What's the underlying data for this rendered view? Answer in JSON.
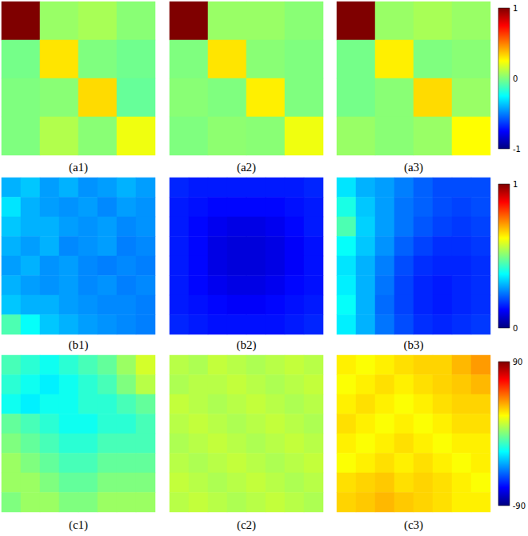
{
  "chart_data": [
    {
      "type": "heatmap",
      "title": "(a1)",
      "tick_labels": false,
      "color_range": [
        -1,
        1
      ],
      "cells": [
        [
          1.0,
          0.05,
          0.08,
          0.02
        ],
        [
          -0.02,
          0.3,
          0.0,
          -0.03
        ],
        [
          0.0,
          0.02,
          0.32,
          -0.05
        ],
        [
          0.0,
          0.1,
          0.02,
          0.22
        ]
      ]
    },
    {
      "type": "heatmap",
      "title": "(a2)",
      "tick_labels": false,
      "color_range": [
        -1,
        1
      ],
      "cells": [
        [
          1.0,
          0.05,
          0.05,
          0.02
        ],
        [
          0.0,
          0.3,
          0.02,
          0.0
        ],
        [
          0.02,
          0.0,
          0.28,
          0.0
        ],
        [
          0.0,
          0.03,
          0.02,
          0.22
        ]
      ]
    },
    {
      "type": "heatmap",
      "title": "(a3)",
      "tick_labels": false,
      "color_range": [
        -1,
        1
      ],
      "color_ticks": [
        -1,
        0,
        1
      ],
      "cells": [
        [
          1.0,
          0.05,
          0.08,
          0.05
        ],
        [
          -0.02,
          0.28,
          0.0,
          0.02
        ],
        [
          -0.02,
          0.02,
          0.32,
          0.05
        ],
        [
          0.05,
          0.02,
          0.05,
          0.25
        ]
      ]
    },
    {
      "type": "heatmap",
      "title": "(b1)",
      "tick_labels": false,
      "color_range": [
        0,
        1
      ],
      "cells": [
        [
          0.3,
          0.32,
          0.28,
          0.3,
          0.27,
          0.28,
          0.3,
          0.28
        ],
        [
          0.35,
          0.3,
          0.28,
          0.27,
          0.28,
          0.26,
          0.28,
          0.27
        ],
        [
          0.32,
          0.3,
          0.3,
          0.28,
          0.27,
          0.28,
          0.26,
          0.27
        ],
        [
          0.3,
          0.28,
          0.3,
          0.26,
          0.27,
          0.28,
          0.25,
          0.26
        ],
        [
          0.28,
          0.3,
          0.27,
          0.28,
          0.26,
          0.25,
          0.26,
          0.25
        ],
        [
          0.3,
          0.28,
          0.27,
          0.28,
          0.26,
          0.27,
          0.25,
          0.26
        ],
        [
          0.32,
          0.3,
          0.3,
          0.28,
          0.27,
          0.26,
          0.26,
          0.25
        ],
        [
          0.45,
          0.38,
          0.32,
          0.3,
          0.28,
          0.27,
          0.26,
          0.25
        ]
      ]
    },
    {
      "type": "heatmap",
      "title": "(b2)",
      "tick_labels": false,
      "color_range": [
        0,
        1
      ],
      "cells": [
        [
          0.16,
          0.15,
          0.15,
          0.15,
          0.15,
          0.15,
          0.15,
          0.16
        ],
        [
          0.15,
          0.14,
          0.13,
          0.13,
          0.13,
          0.13,
          0.14,
          0.15
        ],
        [
          0.15,
          0.13,
          0.11,
          0.1,
          0.1,
          0.11,
          0.13,
          0.15
        ],
        [
          0.15,
          0.13,
          0.1,
          0.09,
          0.09,
          0.1,
          0.12,
          0.14
        ],
        [
          0.15,
          0.13,
          0.1,
          0.09,
          0.09,
          0.1,
          0.12,
          0.14
        ],
        [
          0.15,
          0.13,
          0.11,
          0.1,
          0.1,
          0.11,
          0.13,
          0.14
        ],
        [
          0.15,
          0.14,
          0.13,
          0.12,
          0.12,
          0.13,
          0.14,
          0.15
        ],
        [
          0.16,
          0.15,
          0.14,
          0.14,
          0.14,
          0.14,
          0.15,
          0.16
        ]
      ]
    },
    {
      "type": "heatmap",
      "title": "(b3)",
      "tick_labels": false,
      "color_range": [
        0,
        1
      ],
      "color_ticks": [
        0,
        1
      ],
      "cells": [
        [
          0.35,
          0.3,
          0.28,
          0.25,
          0.22,
          0.2,
          0.2,
          0.2
        ],
        [
          0.4,
          0.32,
          0.28,
          0.24,
          0.22,
          0.2,
          0.19,
          0.2
        ],
        [
          0.45,
          0.33,
          0.28,
          0.24,
          0.21,
          0.19,
          0.18,
          0.19
        ],
        [
          0.38,
          0.32,
          0.27,
          0.22,
          0.19,
          0.17,
          0.17,
          0.18
        ],
        [
          0.35,
          0.3,
          0.25,
          0.2,
          0.17,
          0.16,
          0.16,
          0.17
        ],
        [
          0.36,
          0.3,
          0.24,
          0.19,
          0.16,
          0.15,
          0.16,
          0.17
        ],
        [
          0.38,
          0.3,
          0.23,
          0.19,
          0.16,
          0.15,
          0.16,
          0.17
        ],
        [
          0.36,
          0.3,
          0.24,
          0.2,
          0.17,
          0.16,
          0.17,
          0.18
        ]
      ]
    },
    {
      "type": "heatmap",
      "title": "(c1)",
      "tick_labels": false,
      "color_range": [
        -90,
        90
      ],
      "cells": [
        [
          -10,
          -15,
          -20,
          -15,
          -10,
          -5,
          5,
          15
        ],
        [
          -15,
          -20,
          -25,
          -20,
          -15,
          -10,
          0,
          10
        ],
        [
          -20,
          -25,
          -20,
          -20,
          -15,
          -15,
          -10,
          -5
        ],
        [
          -5,
          -10,
          -15,
          -20,
          -20,
          -15,
          -15,
          -10
        ],
        [
          0,
          -5,
          -10,
          -15,
          -15,
          -10,
          -10,
          -10
        ],
        [
          5,
          0,
          -5,
          -10,
          -10,
          -5,
          -5,
          -5
        ],
        [
          5,
          5,
          0,
          -5,
          -5,
          0,
          0,
          0
        ],
        [
          0,
          5,
          5,
          0,
          0,
          5,
          5,
          5
        ]
      ]
    },
    {
      "type": "heatmap",
      "title": "(c2)",
      "tick_labels": false,
      "color_range": [
        -90,
        90
      ],
      "cells": [
        [
          10,
          8,
          12,
          10,
          8,
          10,
          12,
          10
        ],
        [
          8,
          10,
          10,
          12,
          10,
          8,
          10,
          12
        ],
        [
          12,
          10,
          8,
          10,
          12,
          10,
          8,
          10
        ],
        [
          10,
          12,
          10,
          8,
          10,
          12,
          10,
          8
        ],
        [
          8,
          10,
          12,
          10,
          8,
          10,
          12,
          10
        ],
        [
          10,
          8,
          10,
          12,
          10,
          8,
          10,
          12
        ],
        [
          12,
          10,
          8,
          10,
          12,
          10,
          8,
          10
        ],
        [
          10,
          12,
          10,
          8,
          10,
          12,
          10,
          8
        ]
      ]
    },
    {
      "type": "heatmap",
      "title": "(c3)",
      "tick_labels": false,
      "color_range": [
        -90,
        90
      ],
      "color_ticks": [
        -90,
        90
      ],
      "cells": [
        [
          25,
          22,
          25,
          28,
          30,
          30,
          35,
          40
        ],
        [
          22,
          25,
          28,
          25,
          28,
          30,
          32,
          35
        ],
        [
          25,
          28,
          25,
          22,
          25,
          28,
          30,
          30
        ],
        [
          28,
          25,
          22,
          25,
          22,
          25,
          28,
          28
        ],
        [
          25,
          22,
          25,
          28,
          25,
          22,
          25,
          25
        ],
        [
          22,
          25,
          28,
          25,
          28,
          25,
          22,
          25
        ],
        [
          28,
          30,
          32,
          28,
          30,
          28,
          25,
          22
        ],
        [
          30,
          32,
          35,
          32,
          30,
          28,
          25,
          25
        ]
      ]
    }
  ]
}
